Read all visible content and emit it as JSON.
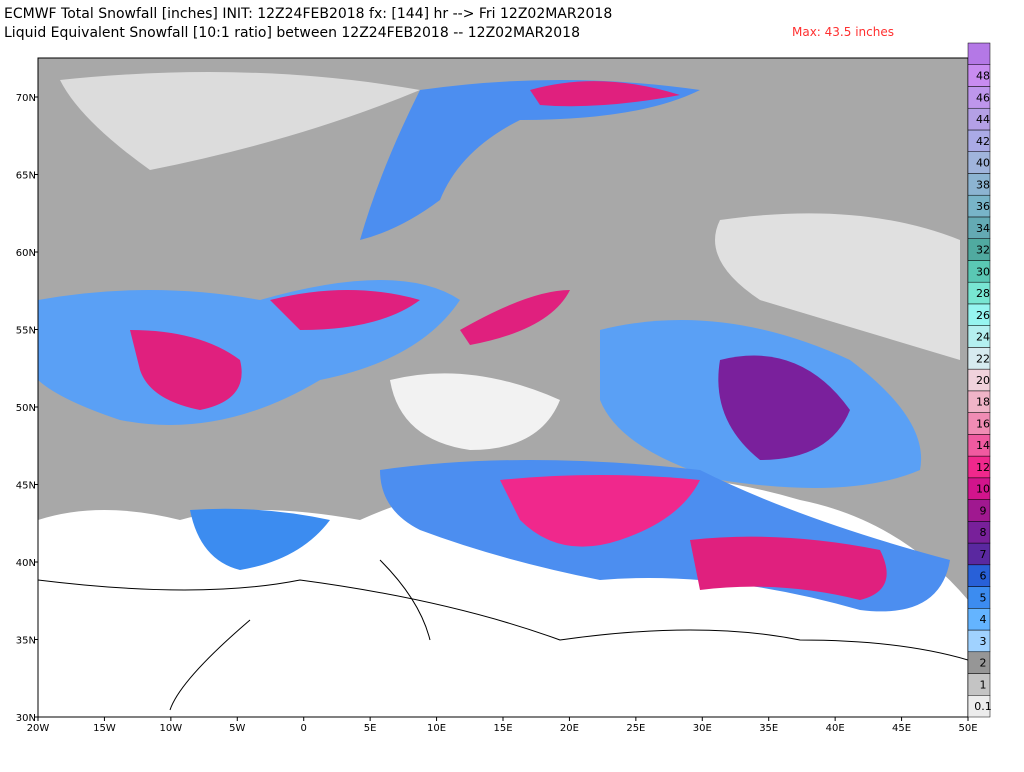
{
  "header": {
    "title": "ECMWF Total Snowfall [inches] INIT: 12Z24FEB2018 fx: [144] hr --> Fri 12Z02MAR2018",
    "subtitle": "Liquid Equivalent Snowfall [10:1 ratio] between 12Z24FEB2018 -- 12Z02MAR2018",
    "max_note": "Max: 43.5 inches"
  },
  "map": {
    "lat_labels": [
      "70N",
      "65N",
      "60N",
      "55N",
      "50N",
      "45N",
      "40N",
      "35N",
      "30N"
    ],
    "lon_labels": [
      "20W",
      "15W",
      "10W",
      "5W",
      "0",
      "5E",
      "10E",
      "15E",
      "20E",
      "25E",
      "30E",
      "35E",
      "40E",
      "45E",
      "50E"
    ]
  },
  "colorbar": {
    "levels": [
      0.1,
      1,
      2,
      3,
      4,
      5,
      6,
      7,
      8,
      9,
      10,
      12,
      14,
      16,
      18,
      20,
      22,
      24,
      26,
      28,
      30,
      32,
      34,
      36,
      38,
      40,
      42,
      44,
      46,
      48
    ],
    "colors": [
      "#ececec",
      "#c4c4c4",
      "#969696",
      "#a0d2ff",
      "#64b4ff",
      "#3c8cf0",
      "#2860d8",
      "#5a28a0",
      "#78209a",
      "#a01890",
      "#d2148c",
      "#f0288c",
      "#f05aa0",
      "#f08cb4",
      "#f0b4c8",
      "#f0d2dc",
      "#d7ebf0",
      "#b4f0f0",
      "#96f5f0",
      "#78e6d2",
      "#5ac8b4",
      "#50aaa0",
      "#64aab4",
      "#78b4c8",
      "#8cb4d2",
      "#a0b4dc",
      "#aaaae6",
      "#b4a0e6",
      "#be96ec",
      "#c88cf0"
    ],
    "over_color": "#b478e6"
  }
}
